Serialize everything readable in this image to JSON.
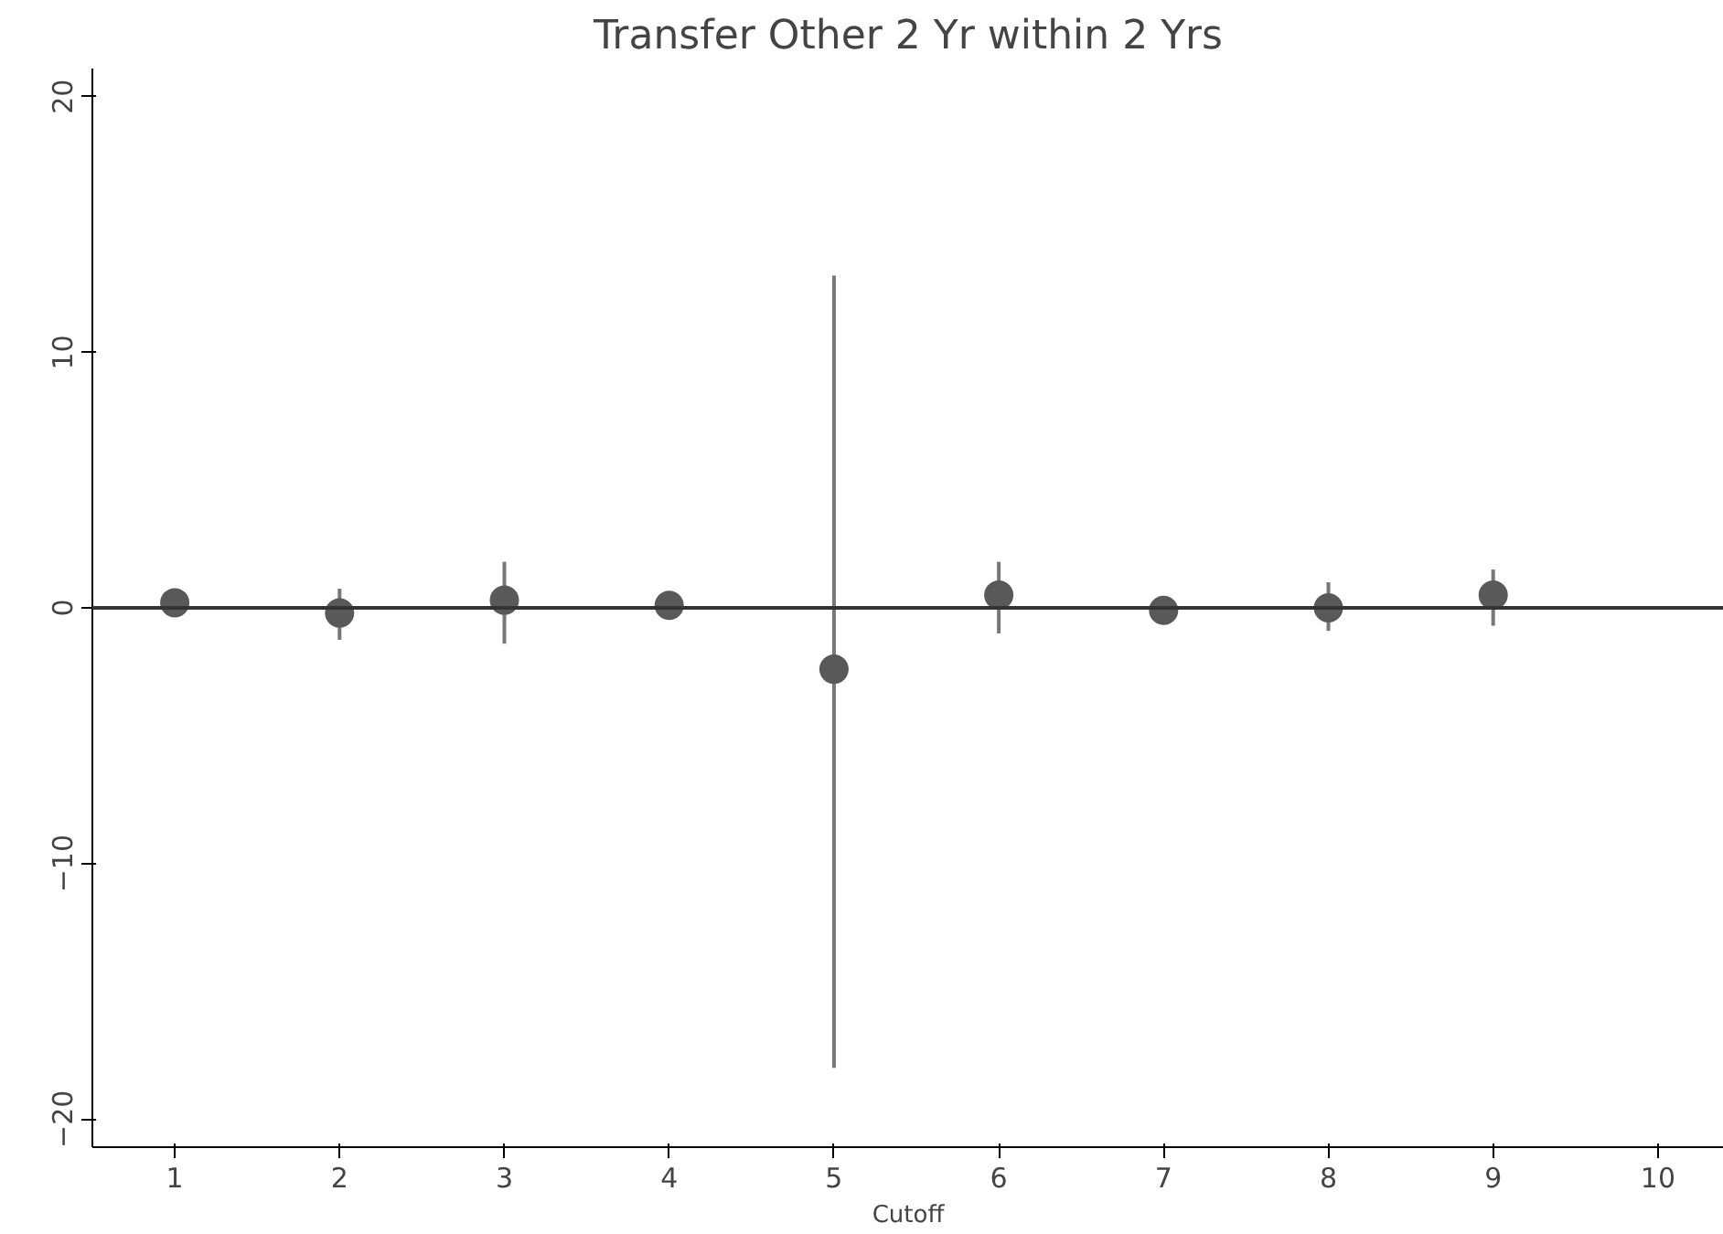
{
  "chart_data": {
    "type": "scatter",
    "title": "Transfer Other 2 Yr within 2 Yrs",
    "xlabel": "Cutoff",
    "x": [
      1,
      2,
      3,
      4,
      5,
      6,
      7,
      8,
      9
    ],
    "values": [
      0.2,
      -0.2,
      0.3,
      0.1,
      -2.4,
      0.5,
      -0.1,
      0.0,
      0.5
    ],
    "errors": [
      null,
      [
        -1.25,
        0.75
      ],
      [
        -1.4,
        1.8
      ],
      null,
      [
        -18,
        13
      ],
      [
        -1.0,
        1.8
      ],
      null,
      [
        -0.9,
        1.0
      ],
      [
        -0.7,
        1.5
      ]
    ],
    "color": "#595959",
    "marker": "circle",
    "grid": false,
    "xlim": [
      0.5,
      10.4
    ],
    "xticks": [
      1,
      2,
      3,
      4,
      5,
      6,
      7,
      8,
      9,
      10
    ],
    "ylim": [
      -21.1,
      21.1
    ],
    "yticks": [
      -20,
      -10,
      0,
      10,
      20
    ],
    "ref_lines": [
      {
        "axis": "y",
        "value": 0,
        "color": "#333333"
      }
    ]
  }
}
